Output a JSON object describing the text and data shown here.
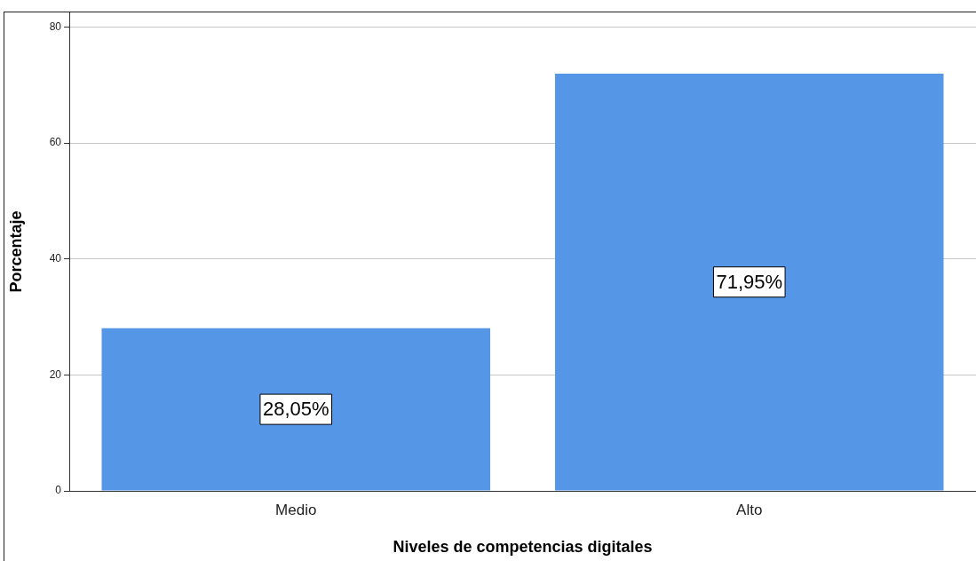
{
  "chart_data": {
    "type": "bar",
    "xlabel": "Niveles de competencias digitales",
    "ylabel": "Porcentaje",
    "categories": [
      "Medio",
      "Alto"
    ],
    "values": [
      28.05,
      71.95
    ],
    "value_labels": [
      "28,05%",
      "71,95%"
    ],
    "color": "#5596e6",
    "ylim": [
      0,
      82.5
    ],
    "yticks": [
      0,
      20,
      40,
      60,
      80
    ],
    "grid": "y"
  }
}
